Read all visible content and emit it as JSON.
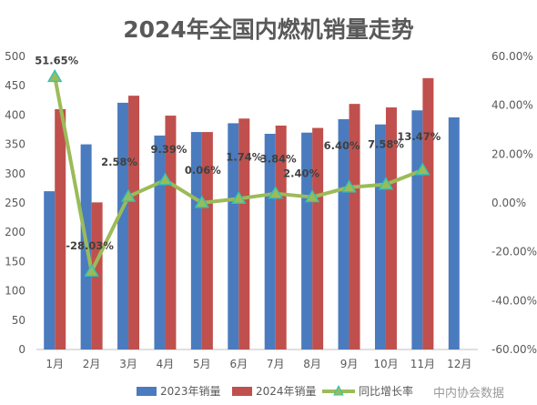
{
  "chart_data": {
    "type": "bar",
    "title": "2024年全国内燃机销量走势",
    "categories": [
      "1月",
      "2月",
      "3月",
      "4月",
      "5月",
      "6月",
      "7月",
      "8月",
      "9月",
      "10月",
      "11月",
      "12月"
    ],
    "series": [
      {
        "name": "2023年销量",
        "kind": "bar",
        "color": "#4a7bbf",
        "values": [
          270,
          350,
          421,
          365,
          371,
          386,
          368,
          370,
          393,
          384,
          408,
          396
        ]
      },
      {
        "name": "2024年销量",
        "kind": "bar",
        "color": "#c0504d",
        "values": [
          410,
          251,
          433,
          399,
          371,
          394,
          382,
          378,
          419,
          413,
          463,
          null
        ]
      },
      {
        "name": "同比增长率",
        "kind": "line",
        "axis": "right",
        "color": "#9bbb59",
        "marker_color": "#2ec4b6",
        "values": [
          51.65,
          -28.03,
          2.58,
          9.39,
          0.06,
          1.74,
          3.84,
          2.4,
          6.4,
          7.58,
          13.47,
          null
        ],
        "labels": [
          "51.65%",
          "-28.03%",
          "2.58%",
          "9.39%",
          "0.06%",
          "1.74%",
          "3.84%",
          "2.40%",
          "6.40%",
          "7.58%",
          "13.47%",
          ""
        ]
      }
    ],
    "y_left": {
      "min": 0,
      "max": 500,
      "step": 50
    },
    "y_right": {
      "min": -60,
      "max": 60,
      "step": 20,
      "tick_labels": [
        "-60.00%",
        "-40.00%",
        "-20.00%",
        "0.00%",
        "20.00%",
        "40.00%",
        "60.00%"
      ]
    },
    "grid": false,
    "legend_position": "bottom"
  },
  "watermark": "中内协会数据"
}
